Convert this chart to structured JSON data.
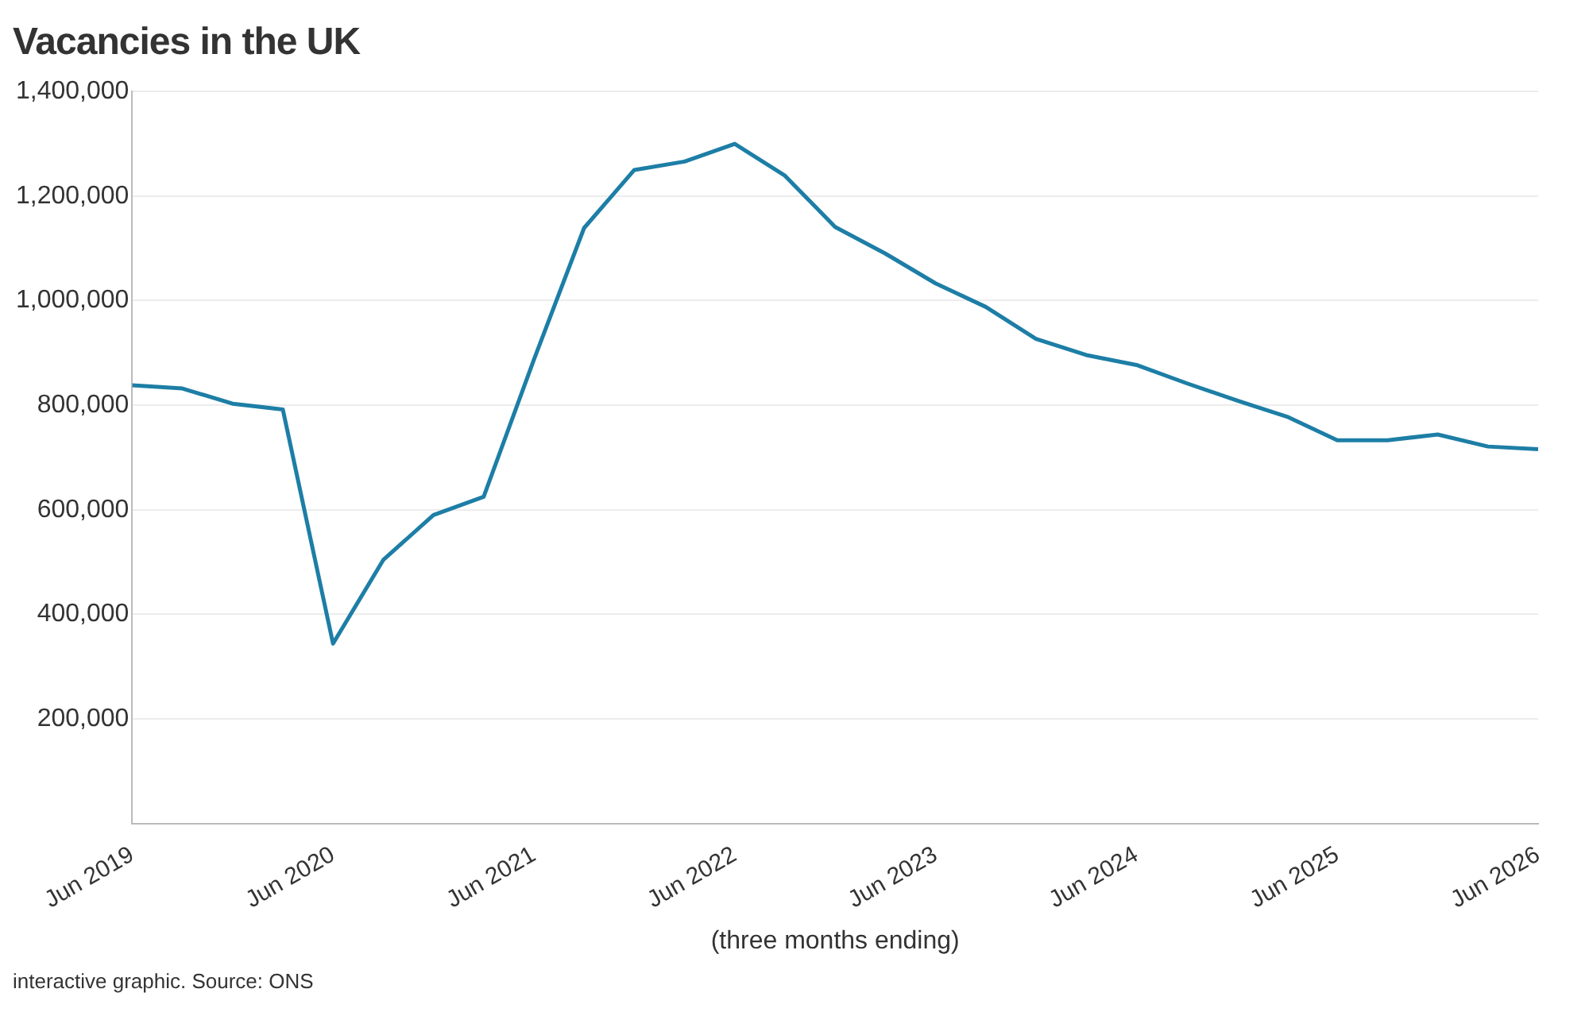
{
  "chart_data": {
    "type": "line",
    "title": "Vacancies in the UK",
    "xlabel": "(three months ending)",
    "annotations": [
      "interactive graphic. Source: ONS"
    ],
    "x": [
      "2019-06",
      "2019-09",
      "2019-12",
      "2020-03",
      "2020-06",
      "2020-09",
      "2020-12",
      "2021-03",
      "2021-06",
      "2021-09",
      "2021-12",
      "2022-03",
      "2022-06",
      "2022-09",
      "2022-12",
      "2023-03",
      "2023-06",
      "2023-09",
      "2023-12",
      "2024-03",
      "2024-06",
      "2024-09",
      "2024-12",
      "2025-03",
      "2025-06",
      "2025-09",
      "2025-12",
      "2026-03",
      "2026-06"
    ],
    "series": [
      {
        "color": "#1d7ea6",
        "values": [
          838000,
          832000,
          803000,
          792000,
          344000,
          504000,
          590000,
          625000,
          887000,
          1139000,
          1250000,
          1266000,
          1300000,
          1239000,
          1141000,
          1090000,
          1033000,
          988000,
          927000,
          896000,
          877000,
          842000,
          809000,
          778000,
          733000,
          733000,
          744000,
          721000,
          716000
        ]
      }
    ],
    "xlim": [
      "2019-06",
      "2026-06"
    ],
    "xticks": [
      {
        "value": "2019-06",
        "label": "Jun 2019"
      },
      {
        "value": "2020-06",
        "label": "Jun 2020"
      },
      {
        "value": "2021-06",
        "label": "Jun 2021"
      },
      {
        "value": "2022-06",
        "label": "Jun 2022"
      },
      {
        "value": "2023-06",
        "label": "Jun 2023"
      },
      {
        "value": "2024-06",
        "label": "Jun 2024"
      },
      {
        "value": "2025-06",
        "label": "Jun 2025"
      },
      {
        "value": "2026-06",
        "label": "Jun 2026"
      }
    ],
    "ylim": [
      0,
      1400000
    ],
    "yticks": [
      {
        "value": 0,
        "label": null
      },
      {
        "value": 200000,
        "label": "200,000"
      },
      {
        "value": 400000,
        "label": "400,000"
      },
      {
        "value": 600000,
        "label": "600,000"
      },
      {
        "value": 800000,
        "label": "800,000"
      },
      {
        "value": 1000000,
        "label": "1,000,000"
      },
      {
        "value": 1200000,
        "label": "1,200,000"
      },
      {
        "value": 1400000,
        "label": "1,400,000"
      }
    ],
    "grid": "y",
    "legend": false,
    "marker": "none",
    "line_style": "solid"
  }
}
